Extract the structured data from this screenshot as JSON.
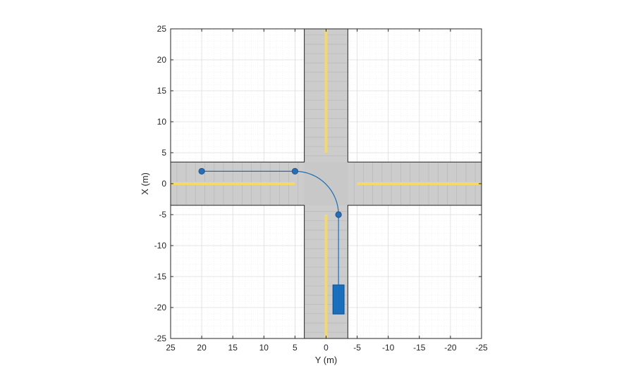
{
  "axes": {
    "xlabel": "Y (m)",
    "ylabel": "X (m)",
    "xlim": [
      25,
      -25
    ],
    "ylim": [
      -25,
      25
    ],
    "x_ticks": [
      25,
      20,
      15,
      10,
      5,
      0,
      -5,
      -10,
      -15,
      -20,
      -25
    ],
    "y_ticks": [
      25,
      20,
      15,
      10,
      5,
      0,
      -5,
      -10,
      -15,
      -20,
      -25
    ],
    "grid_minor": true,
    "colors": {
      "axis": "#262626",
      "grid_major": "#dcdcdc",
      "grid_minor": "#ececec",
      "road": "#cccccc",
      "lane_marking": "#f2d675",
      "centerline": "#f5d86b",
      "path": "#1f6db3",
      "vehicle": "#1a6fbd",
      "waypoint": "#2a6cb3"
    }
  },
  "scene": {
    "road_vertical": {
      "y_range": [
        3.5,
        -3.5
      ],
      "x_range": [
        -25,
        25
      ]
    },
    "road_horizontal": {
      "x_range": [
        -3.5,
        3.5
      ],
      "y_range": [
        25,
        -25
      ]
    },
    "centerline_gaps": {
      "vertical_x": [
        -5,
        5
      ],
      "horizontal_y": [
        -5,
        5
      ]
    },
    "waypoints": [
      {
        "x": 2,
        "y": 20
      },
      {
        "x": 2,
        "y": 5
      },
      {
        "x": -5,
        "y": -2
      }
    ],
    "vehicle": {
      "x_center": -18.7,
      "y_center": -2,
      "length": 4.7,
      "width": 1.8
    }
  }
}
